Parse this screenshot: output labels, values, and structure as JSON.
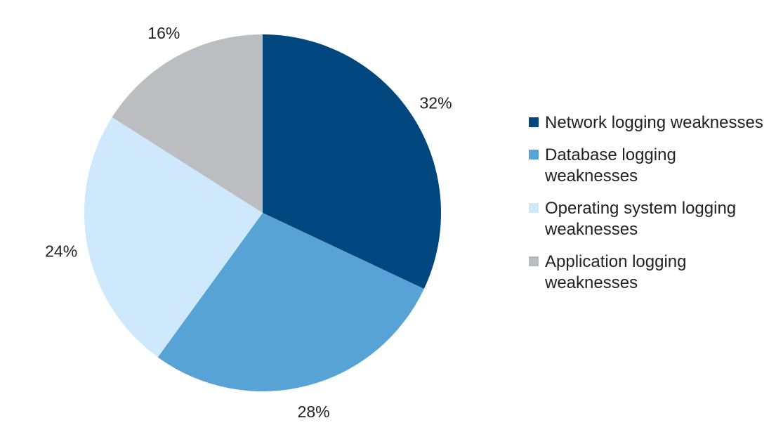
{
  "chart_data": {
    "type": "pie",
    "slices": [
      {
        "label": "Network logging weaknesses",
        "value": 32,
        "value_label": "32%",
        "color": "#00467f"
      },
      {
        "label": "Database logging weaknesses",
        "value": 28,
        "value_label": "28%",
        "color": "#57a3d6"
      },
      {
        "label": "Operating system logging weaknesses",
        "value": 24,
        "value_label": "24%",
        "color": "#cde9fb"
      },
      {
        "label": "Application logging weaknesses",
        "value": 16,
        "value_label": "16%",
        "color": "#bcbdc1"
      }
    ],
    "start_angle": "12 o'clock",
    "direction": "clockwise",
    "legend_position": "right"
  }
}
